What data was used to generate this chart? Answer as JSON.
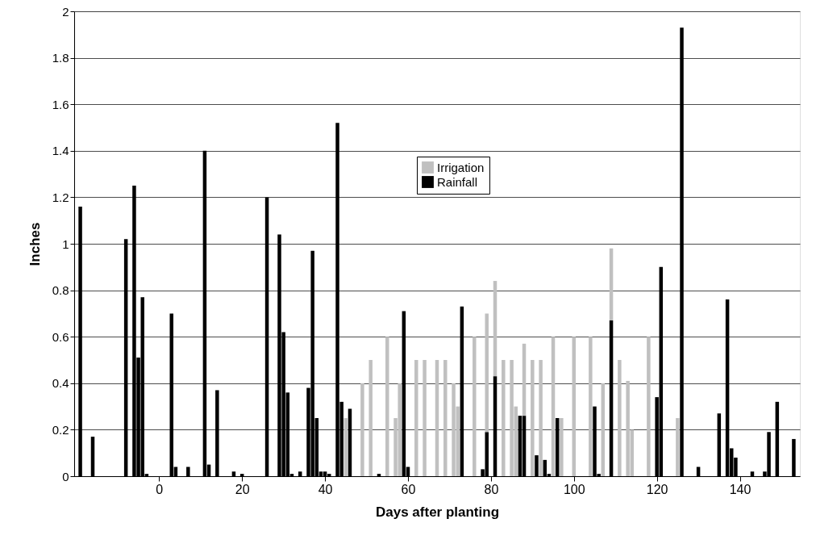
{
  "chart_data": {
    "type": "bar",
    "stacked": true,
    "xlabel": "Days after planting",
    "ylabel": "Inches",
    "xlim": [
      -19.5,
      153.5
    ],
    "xticks": [
      0,
      20,
      40,
      60,
      80,
      100,
      120,
      140
    ],
    "ylim": [
      0,
      2
    ],
    "yticks": [
      0,
      0.2,
      0.4,
      0.6,
      0.8,
      1,
      1.2,
      1.4,
      1.6,
      1.8,
      2
    ],
    "grid": "y",
    "legend": "top",
    "x": [
      -19,
      -16,
      -8,
      -6,
      -5,
      -4,
      -3,
      3,
      4,
      7,
      11,
      12,
      14,
      18,
      20,
      26,
      29,
      30,
      31,
      32,
      34,
      36,
      37,
      38,
      39,
      40,
      41,
      43,
      44,
      45,
      46,
      49,
      51,
      53,
      55,
      57,
      58,
      59,
      60,
      62,
      64,
      67,
      69,
      71,
      72,
      73,
      76,
      78,
      79,
      81,
      83,
      85,
      86,
      87,
      88,
      90,
      91,
      92,
      93,
      94,
      95,
      96,
      97,
      100,
      104,
      105,
      106,
      107,
      109,
      111,
      113,
      114,
      118,
      120,
      121,
      125,
      126,
      130,
      135,
      137,
      138,
      139,
      143,
      146,
      147,
      149,
      153
    ],
    "series": [
      {
        "name": "Rainfall",
        "color": "#000000",
        "values": [
          1.16,
          0.17,
          1.02,
          1.25,
          0.51,
          0.77,
          0.01,
          0.7,
          0.04,
          0.04,
          1.4,
          0.05,
          0.37,
          0.02,
          0.01,
          1.2,
          1.04,
          0.62,
          0.36,
          0.01,
          0.02,
          0.38,
          0.97,
          0.25,
          0.02,
          0.02,
          0.01,
          1.52,
          0.32,
          null,
          0.29,
          null,
          null,
          0.01,
          null,
          null,
          null,
          0.71,
          0.04,
          null,
          null,
          null,
          null,
          null,
          null,
          0.73,
          null,
          0.03,
          0.19,
          0.43,
          null,
          null,
          null,
          0.26,
          0.26,
          null,
          0.09,
          null,
          0.07,
          0.01,
          null,
          0.25,
          null,
          null,
          null,
          0.3,
          0.01,
          null,
          0.67,
          null,
          null,
          null,
          null,
          0.34,
          0.9,
          null,
          1.93,
          0.04,
          0.27,
          0.76,
          0.12,
          0.08,
          0.02,
          0.02,
          0.19,
          0.32,
          0.16
        ]
      },
      {
        "name": "Irrigation",
        "color": "#c0c0c0",
        "values": [
          null,
          null,
          null,
          null,
          null,
          null,
          null,
          null,
          null,
          null,
          null,
          null,
          null,
          null,
          null,
          null,
          null,
          null,
          null,
          null,
          null,
          null,
          null,
          null,
          null,
          null,
          null,
          null,
          null,
          0.25,
          null,
          0.4,
          0.5,
          null,
          0.6,
          0.25,
          0.4,
          null,
          null,
          0.5,
          0.5,
          0.5,
          0.5,
          0.4,
          0.3,
          null,
          0.6,
          null,
          0.51,
          0.41,
          0.5,
          0.5,
          0.3,
          null,
          0.31,
          0.5,
          null,
          0.5,
          null,
          null,
          0.6,
          null,
          0.25,
          0.6,
          0.6,
          null,
          null,
          0.4,
          0.31,
          0.5,
          0.41,
          0.2,
          0.6,
          null,
          null,
          0.25,
          null,
          null,
          null,
          null,
          null,
          null,
          null,
          null,
          null,
          null,
          null
        ]
      }
    ]
  }
}
